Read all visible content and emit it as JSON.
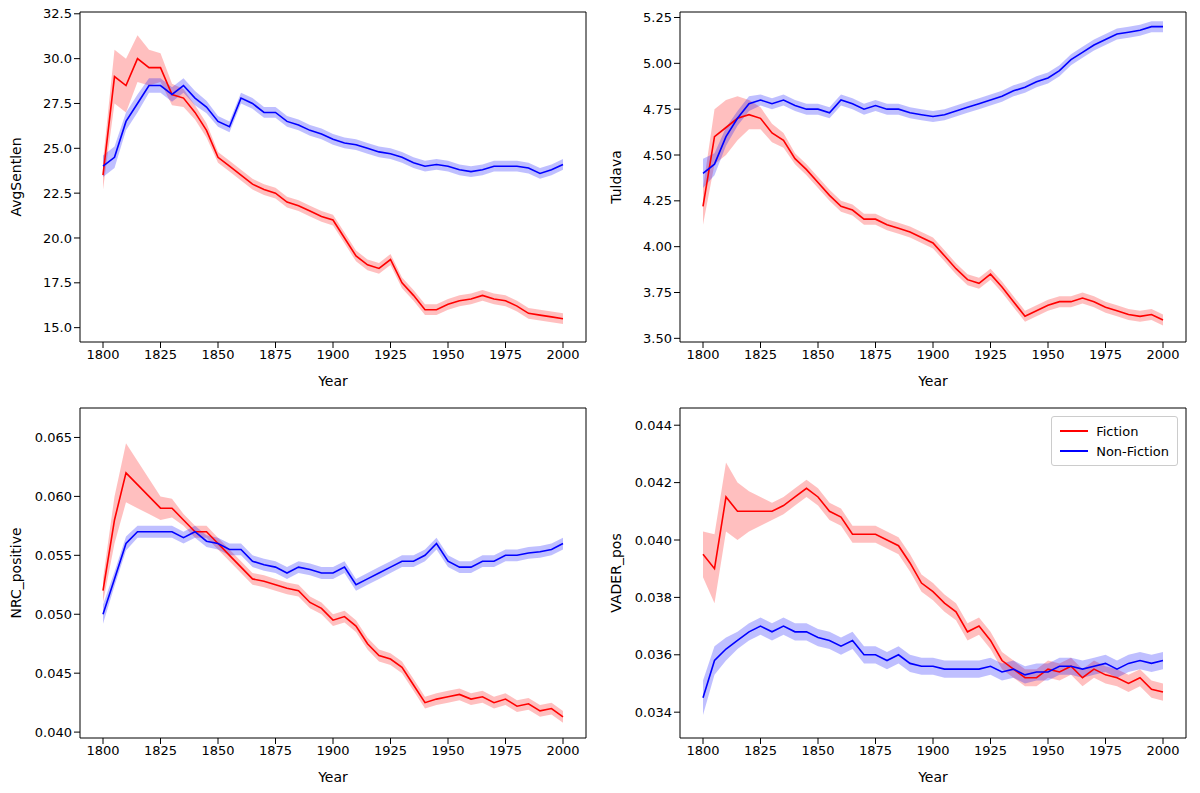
{
  "chart_data": [
    {
      "type": "line",
      "x_label": "Year",
      "y_label": "AvgSentlen",
      "xlim": [
        1790,
        2010
      ],
      "xticks": [
        1800,
        1825,
        1850,
        1875,
        1900,
        1925,
        1950,
        1975,
        2000
      ],
      "ylim": [
        14.2,
        32.6
      ],
      "yticks": [
        {
          "value": 15,
          "label": "15.0"
        },
        17.5,
        {
          "value": 20,
          "label": "20.0"
        },
        22.5,
        {
          "value": 25,
          "label": "25.0"
        },
        27.5,
        {
          "value": 30,
          "label": "30.0"
        },
        32.5
      ],
      "x": [
        1800,
        1805,
        1810,
        1815,
        1820,
        1825,
        1830,
        1835,
        1840,
        1845,
        1850,
        1855,
        1860,
        1865,
        1870,
        1875,
        1880,
        1885,
        1890,
        1895,
        1900,
        1905,
        1910,
        1915,
        1920,
        1925,
        1930,
        1935,
        1940,
        1945,
        1950,
        1955,
        1960,
        1965,
        1970,
        1975,
        1980,
        1985,
        1990,
        1995,
        2000
      ],
      "series": [
        {
          "color": "#ff0000",
          "values": [
            23.5,
            29,
            28.5,
            30,
            29.5,
            29.5,
            28,
            27.8,
            27,
            26,
            24.5,
            24,
            23.5,
            23,
            22.7,
            22.5,
            22,
            21.8,
            21.5,
            21.2,
            21,
            20,
            19,
            18.5,
            18.3,
            18.8,
            17.5,
            16.8,
            16,
            16,
            16.3,
            16.5,
            16.6,
            16.8,
            16.6,
            16.5,
            16.2,
            15.8,
            15.7,
            15.6,
            15.5
          ],
          "ci": [
            0.8,
            1.5,
            1.5,
            1.3,
            1,
            0.8,
            0.6,
            0.5,
            0.4,
            0.4,
            0.3,
            0.3,
            0.3,
            0.3,
            0.3,
            0.3,
            0.3,
            0.3,
            0.3,
            0.3,
            0.3,
            0.3,
            0.3,
            0.3,
            0.3,
            0.3,
            0.3,
            0.3,
            0.3,
            0.3,
            0.3,
            0.3,
            0.3,
            0.3,
            0.3,
            0.3,
            0.3,
            0.3,
            0.3,
            0.3,
            0.3
          ]
        },
        {
          "color": "#0000ff",
          "values": [
            24,
            24.5,
            26.5,
            27.5,
            28.5,
            28.5,
            28,
            28.5,
            27.8,
            27.3,
            26.5,
            26.2,
            27.8,
            27.5,
            27,
            27,
            26.5,
            26.3,
            26,
            25.8,
            25.5,
            25.3,
            25.2,
            25,
            24.8,
            24.7,
            24.5,
            24.2,
            24,
            24.1,
            24,
            23.8,
            23.7,
            23.8,
            24,
            24,
            24,
            23.9,
            23.6,
            23.8,
            24.1
          ],
          "ci": [
            0.6,
            0.6,
            0.5,
            0.5,
            0.4,
            0.4,
            0.4,
            0.4,
            0.4,
            0.35,
            0.3,
            0.3,
            0.3,
            0.3,
            0.3,
            0.3,
            0.3,
            0.3,
            0.3,
            0.3,
            0.3,
            0.3,
            0.3,
            0.3,
            0.3,
            0.3,
            0.3,
            0.3,
            0.3,
            0.3,
            0.3,
            0.3,
            0.3,
            0.3,
            0.3,
            0.3,
            0.3,
            0.3,
            0.3,
            0.3,
            0.3
          ]
        }
      ]
    },
    {
      "type": "line",
      "x_label": "Year",
      "y_label": "Tuldava",
      "xlim": [
        1790,
        2010
      ],
      "xticks": [
        1800,
        1825,
        1850,
        1875,
        1900,
        1925,
        1950,
        1975,
        2000
      ],
      "ylim": [
        3.48,
        5.28
      ],
      "yticks": [
        {
          "value": 3.5,
          "label": "3.50"
        },
        3.75,
        {
          "value": 4,
          "label": "4.00"
        },
        4.25,
        {
          "value": 4.5,
          "label": "4.50"
        },
        4.75,
        {
          "value": 5,
          "label": "5.00"
        },
        5.25
      ],
      "x": [
        1800,
        1805,
        1810,
        1815,
        1820,
        1825,
        1830,
        1835,
        1840,
        1845,
        1850,
        1855,
        1860,
        1865,
        1870,
        1875,
        1880,
        1885,
        1890,
        1895,
        1900,
        1905,
        1910,
        1915,
        1920,
        1925,
        1930,
        1935,
        1940,
        1945,
        1950,
        1955,
        1960,
        1965,
        1970,
        1975,
        1980,
        1985,
        1990,
        1995,
        2000
      ],
      "series": [
        {
          "color": "#ff0000",
          "values": [
            4.22,
            4.6,
            4.65,
            4.7,
            4.72,
            4.7,
            4.62,
            4.58,
            4.48,
            4.42,
            4.35,
            4.28,
            4.22,
            4.2,
            4.15,
            4.15,
            4.12,
            4.1,
            4.08,
            4.05,
            4.02,
            3.95,
            3.88,
            3.82,
            3.8,
            3.85,
            3.78,
            3.7,
            3.62,
            3.65,
            3.68,
            3.7,
            3.7,
            3.72,
            3.7,
            3.67,
            3.65,
            3.63,
            3.62,
            3.63,
            3.6
          ],
          "ci": [
            0.1,
            0.15,
            0.15,
            0.12,
            0.08,
            0.06,
            0.05,
            0.04,
            0.03,
            0.03,
            0.03,
            0.03,
            0.03,
            0.03,
            0.03,
            0.03,
            0.03,
            0.03,
            0.03,
            0.03,
            0.03,
            0.03,
            0.03,
            0.03,
            0.03,
            0.03,
            0.03,
            0.03,
            0.03,
            0.03,
            0.03,
            0.03,
            0.03,
            0.03,
            0.03,
            0.03,
            0.03,
            0.03,
            0.03,
            0.03,
            0.03
          ]
        },
        {
          "color": "#0000ff",
          "values": [
            4.4,
            4.45,
            4.6,
            4.7,
            4.78,
            4.8,
            4.78,
            4.8,
            4.77,
            4.75,
            4.75,
            4.73,
            4.8,
            4.78,
            4.75,
            4.77,
            4.75,
            4.75,
            4.73,
            4.72,
            4.71,
            4.72,
            4.74,
            4.76,
            4.78,
            4.8,
            4.82,
            4.85,
            4.87,
            4.9,
            4.92,
            4.96,
            5.02,
            5.06,
            5.1,
            5.13,
            5.16,
            5.17,
            5.18,
            5.2,
            5.2
          ],
          "ci": [
            0.08,
            0.06,
            0.05,
            0.04,
            0.04,
            0.03,
            0.03,
            0.03,
            0.03,
            0.03,
            0.03,
            0.03,
            0.03,
            0.03,
            0.03,
            0.03,
            0.03,
            0.03,
            0.03,
            0.03,
            0.03,
            0.03,
            0.03,
            0.03,
            0.03,
            0.03,
            0.03,
            0.03,
            0.03,
            0.03,
            0.03,
            0.03,
            0.03,
            0.03,
            0.03,
            0.03,
            0.03,
            0.03,
            0.03,
            0.03,
            0.03
          ]
        }
      ]
    },
    {
      "type": "line",
      "x_label": "Year",
      "y_label": "NRC_positive",
      "xlim": [
        1790,
        2010
      ],
      "xticks": [
        1800,
        1825,
        1850,
        1875,
        1900,
        1925,
        1950,
        1975,
        2000
      ],
      "ylim": [
        0.0395,
        0.0675
      ],
      "yticks": [
        {
          "value": 0.04,
          "label": "0.040"
        },
        0.045,
        {
          "value": 0.05,
          "label": "0.050"
        },
        0.055,
        {
          "value": 0.06,
          "label": "0.060"
        },
        0.065
      ],
      "x": [
        1800,
        1805,
        1810,
        1815,
        1820,
        1825,
        1830,
        1835,
        1840,
        1845,
        1850,
        1855,
        1860,
        1865,
        1870,
        1875,
        1880,
        1885,
        1890,
        1895,
        1900,
        1905,
        1910,
        1915,
        1920,
        1925,
        1930,
        1935,
        1940,
        1945,
        1950,
        1955,
        1960,
        1965,
        1970,
        1975,
        1980,
        1985,
        1990,
        1995,
        2000
      ],
      "series": [
        {
          "color": "#ff0000",
          "values": [
            0.052,
            0.058,
            0.062,
            0.061,
            0.06,
            0.059,
            0.059,
            0.058,
            0.057,
            0.057,
            0.056,
            0.055,
            0.054,
            0.053,
            0.0528,
            0.0525,
            0.0522,
            0.052,
            0.051,
            0.0505,
            0.0495,
            0.0498,
            0.049,
            0.0475,
            0.0465,
            0.0462,
            0.0455,
            0.044,
            0.0425,
            0.0428,
            0.043,
            0.0432,
            0.0428,
            0.043,
            0.0425,
            0.0428,
            0.0422,
            0.0424,
            0.0418,
            0.042,
            0.0413
          ],
          "ci": [
            0.001,
            0.002,
            0.0025,
            0.002,
            0.0015,
            0.001,
            0.0008,
            0.0005,
            0.0005,
            0.0005,
            0.0005,
            0.0005,
            0.0005,
            0.0005,
            0.0005,
            0.0005,
            0.0005,
            0.0005,
            0.0005,
            0.0005,
            0.0005,
            0.0005,
            0.0005,
            0.0005,
            0.0005,
            0.0005,
            0.0005,
            0.0005,
            0.0005,
            0.0005,
            0.0005,
            0.0005,
            0.0005,
            0.0005,
            0.0005,
            0.0005,
            0.0005,
            0.0005,
            0.0005,
            0.0005,
            0.0005
          ]
        },
        {
          "color": "#0000ff",
          "values": [
            0.05,
            0.053,
            0.056,
            0.057,
            0.057,
            0.057,
            0.057,
            0.0565,
            0.057,
            0.0562,
            0.056,
            0.0555,
            0.0555,
            0.0545,
            0.0542,
            0.054,
            0.0535,
            0.054,
            0.0538,
            0.0535,
            0.0535,
            0.054,
            0.0525,
            0.053,
            0.0535,
            0.054,
            0.0545,
            0.0545,
            0.055,
            0.056,
            0.0545,
            0.054,
            0.054,
            0.0545,
            0.0545,
            0.055,
            0.055,
            0.0552,
            0.0553,
            0.0555,
            0.056
          ],
          "ci": [
            0.0008,
            0.0006,
            0.0006,
            0.0005,
            0.0005,
            0.0005,
            0.0005,
            0.0005,
            0.0005,
            0.0005,
            0.0005,
            0.0005,
            0.0005,
            0.0005,
            0.0005,
            0.0005,
            0.0005,
            0.0005,
            0.0005,
            0.0005,
            0.0005,
            0.0005,
            0.0005,
            0.0005,
            0.0005,
            0.0005,
            0.0005,
            0.0005,
            0.0005,
            0.0005,
            0.0005,
            0.0005,
            0.0005,
            0.0005,
            0.0005,
            0.0005,
            0.0005,
            0.0005,
            0.0005,
            0.0005,
            0.0005
          ]
        }
      ]
    },
    {
      "type": "line",
      "x_label": "Year",
      "y_label": "VADER_pos",
      "legend": "upper right",
      "xlim": [
        1790,
        2010
      ],
      "xticks": [
        1800,
        1825,
        1850,
        1875,
        1900,
        1925,
        1950,
        1975,
        2000
      ],
      "ylim": [
        0.0331,
        0.0446
      ],
      "yticks": [
        0.034,
        0.036,
        0.038,
        {
          "value": 0.04,
          "label": "0.040"
        },
        0.042,
        0.044
      ],
      "x": [
        1800,
        1805,
        1810,
        1815,
        1820,
        1825,
        1830,
        1835,
        1840,
        1845,
        1850,
        1855,
        1860,
        1865,
        1870,
        1875,
        1880,
        1885,
        1890,
        1895,
        1900,
        1905,
        1910,
        1915,
        1920,
        1925,
        1930,
        1935,
        1940,
        1945,
        1950,
        1955,
        1960,
        1965,
        1970,
        1975,
        1980,
        1985,
        1990,
        1995,
        2000
      ],
      "series": [
        {
          "name": "Fiction",
          "color": "#ff0000",
          "values": [
            0.0395,
            0.039,
            0.0415,
            0.041,
            0.041,
            0.041,
            0.041,
            0.0412,
            0.0415,
            0.0418,
            0.0415,
            0.041,
            0.0408,
            0.0402,
            0.0402,
            0.0402,
            0.04,
            0.0398,
            0.0392,
            0.0385,
            0.0382,
            0.0378,
            0.0375,
            0.0368,
            0.037,
            0.0365,
            0.0358,
            0.0355,
            0.0352,
            0.0352,
            0.0355,
            0.0354,
            0.0356,
            0.0352,
            0.0355,
            0.0353,
            0.0352,
            0.035,
            0.0352,
            0.0348,
            0.0347
          ],
          "ci": [
            0.0008,
            0.0012,
            0.0012,
            0.001,
            0.0007,
            0.0005,
            0.0003,
            0.0003,
            0.0003,
            0.0003,
            0.0003,
            0.0003,
            0.0003,
            0.0003,
            0.0003,
            0.0003,
            0.0003,
            0.0003,
            0.0003,
            0.0003,
            0.0003,
            0.0003,
            0.0003,
            0.0003,
            0.0003,
            0.0003,
            0.0003,
            0.0003,
            0.0003,
            0.0003,
            0.0003,
            0.0003,
            0.0003,
            0.0003,
            0.0003,
            0.0003,
            0.0003,
            0.0003,
            0.0003,
            0.0003,
            0.0003
          ]
        },
        {
          "name": "Non-Fiction",
          "color": "#0000ff",
          "values": [
            0.0345,
            0.0358,
            0.0362,
            0.0365,
            0.0368,
            0.037,
            0.0368,
            0.037,
            0.0368,
            0.0368,
            0.0366,
            0.0365,
            0.0363,
            0.0365,
            0.036,
            0.036,
            0.0358,
            0.036,
            0.0357,
            0.0356,
            0.0356,
            0.0355,
            0.0355,
            0.0355,
            0.0355,
            0.0356,
            0.0354,
            0.0355,
            0.0353,
            0.0354,
            0.0354,
            0.0356,
            0.0356,
            0.0355,
            0.0356,
            0.0357,
            0.0355,
            0.0357,
            0.0358,
            0.0357,
            0.0358
          ],
          "ci": [
            0.0006,
            0.0005,
            0.0004,
            0.0003,
            0.0003,
            0.0003,
            0.0003,
            0.0003,
            0.0003,
            0.0003,
            0.0003,
            0.0003,
            0.0003,
            0.0003,
            0.0003,
            0.0003,
            0.0003,
            0.0003,
            0.0003,
            0.0003,
            0.0003,
            0.0003,
            0.0003,
            0.0003,
            0.0003,
            0.0003,
            0.0003,
            0.0003,
            0.0003,
            0.0003,
            0.0003,
            0.0003,
            0.0003,
            0.0003,
            0.0003,
            0.0003,
            0.0003,
            0.0003,
            0.0003,
            0.0003,
            0.0003
          ]
        }
      ]
    }
  ]
}
